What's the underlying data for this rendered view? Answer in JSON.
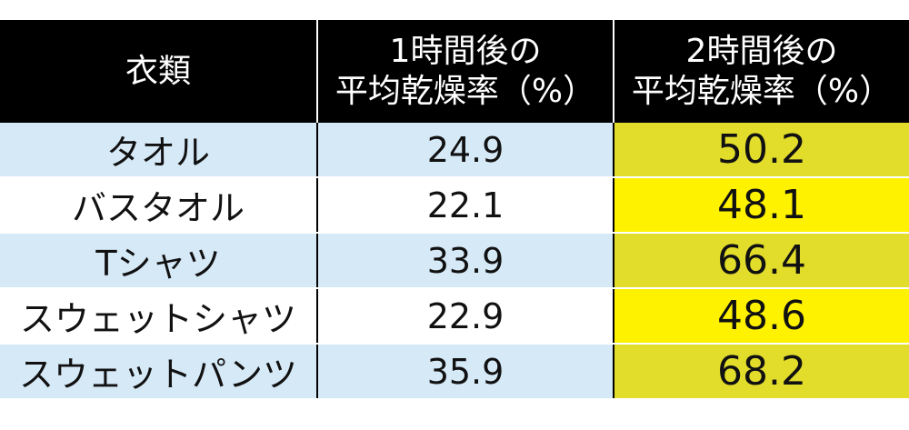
{
  "header": {
    "col_item": "衣類",
    "col_1h": [
      "1時間後の",
      "平均乾燥率（%）"
    ],
    "col_2h": [
      "2時間後の",
      "平均乾燥率（%）"
    ]
  },
  "rows": [
    {
      "item": "タオル",
      "after_1h": "24.9",
      "after_2h": "50.2"
    },
    {
      "item": "バスタオル",
      "after_1h": "22.1",
      "after_2h": "48.1"
    },
    {
      "item": "Tシャツ",
      "after_1h": "33.9",
      "after_2h": "66.4"
    },
    {
      "item": "スウェットシャツ",
      "after_1h": "22.9",
      "after_2h": "48.6"
    },
    {
      "item": "スウェットパンツ",
      "after_1h": "35.9",
      "after_2h": "68.2"
    }
  ],
  "colors": {
    "header_bg": "#000000",
    "row_blue": "#d6e9f7",
    "highlight_dark": "#e2dd2b",
    "highlight_light": "#fff200"
  }
}
